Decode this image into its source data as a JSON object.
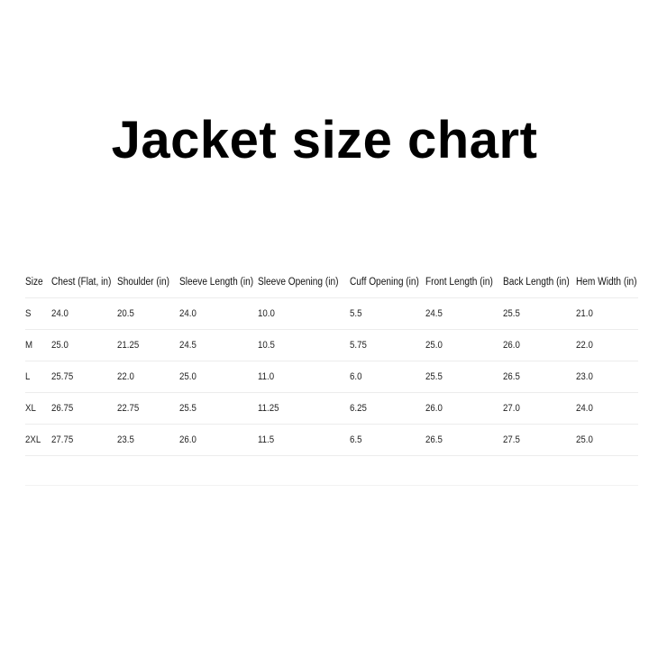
{
  "title": "Jacket size chart",
  "table": {
    "headers": [
      "Size",
      "Chest (Flat, in)",
      "Shoulder (in)",
      "Sleeve Length (in)",
      "Sleeve Opening (in)",
      "Cuff Opening (in)",
      "Front Length (in)",
      "Back Length (in)",
      "Hem Width (in)"
    ],
    "rows": [
      [
        "S",
        "24.0",
        "20.5",
        "24.0",
        "10.0",
        "5.5",
        "24.5",
        "25.5",
        "21.0"
      ],
      [
        "M",
        "25.0",
        "21.25",
        "24.5",
        "10.5",
        "5.75",
        "25.0",
        "26.0",
        "22.0"
      ],
      [
        "L",
        "25.75",
        "22.0",
        "25.0",
        "11.0",
        "6.0",
        "25.5",
        "26.5",
        "23.0"
      ],
      [
        "XL",
        "26.75",
        "22.75",
        "25.5",
        "11.25",
        "6.25",
        "26.0",
        "27.0",
        "24.0"
      ],
      [
        "2XL",
        "27.75",
        "23.5",
        "26.0",
        "11.5",
        "6.5",
        "26.5",
        "27.5",
        "25.0"
      ]
    ]
  }
}
